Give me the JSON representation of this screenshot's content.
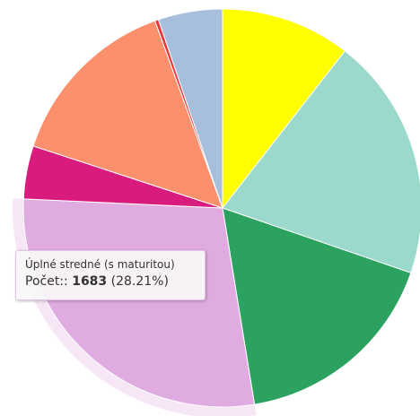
{
  "chart_data": {
    "type": "pie",
    "slices": [
      {
        "value": 10.5,
        "color": "#ffff00"
      },
      {
        "value": 19.7,
        "color": "#9ad9cb"
      },
      {
        "value": 17.1,
        "color": "#2ca260"
      },
      {
        "label": "Úplné stredné (s maturitou)",
        "value": 28.21,
        "count": 1683,
        "color": "#e0abe1",
        "hover": true
      },
      {
        "value": 4.3,
        "color": "#d81b7d"
      },
      {
        "value": 14.4,
        "color": "#fc906c"
      },
      {
        "value": 0.3,
        "color": "#e63b3b"
      },
      {
        "value": 5.2,
        "color": "#a7bfdd"
      }
    ]
  },
  "tooltip": {
    "title": "Úplné stredné (s maturitou)",
    "count_label": "Počet::",
    "count_value": "1683",
    "percent": "(28.21%)"
  }
}
